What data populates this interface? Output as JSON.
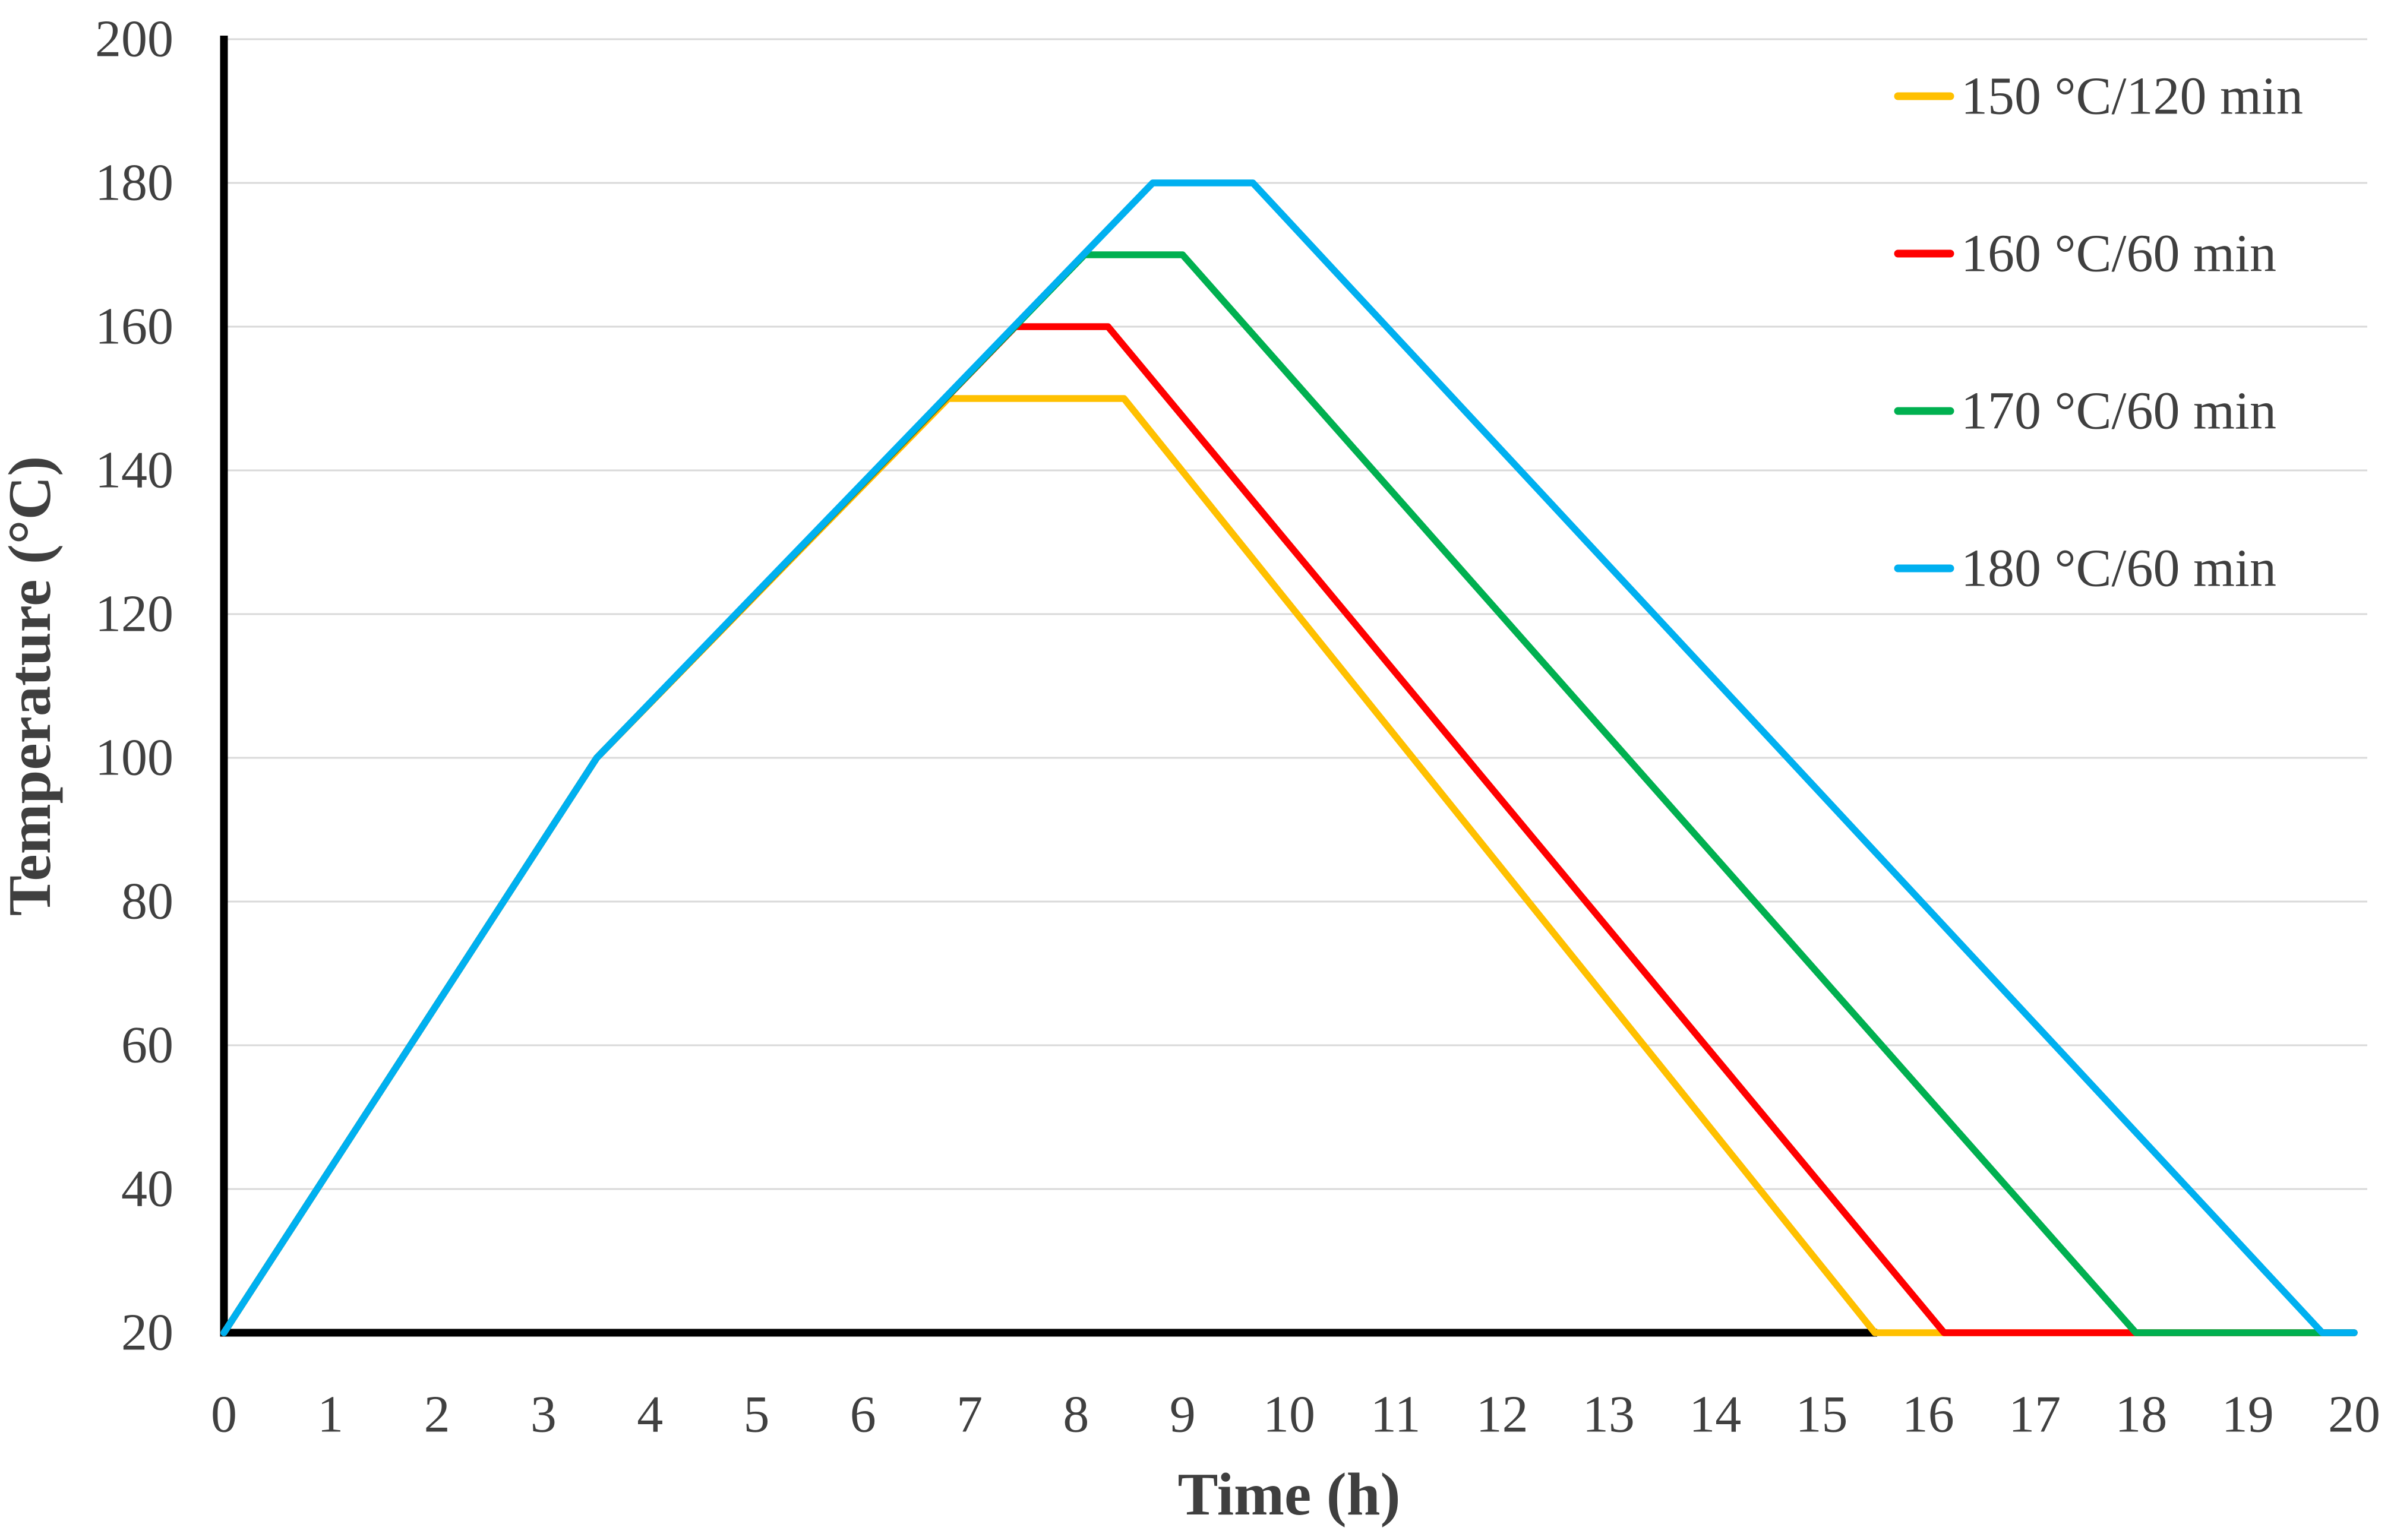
{
  "chart_data": {
    "type": "line",
    "title": "",
    "xlabel": "Time (h)",
    "ylabel": "Temperature (°C)",
    "xlim": [
      0,
      20
    ],
    "ylim": [
      20,
      200
    ],
    "x_ticks": [
      0,
      1,
      2,
      3,
      4,
      5,
      6,
      7,
      8,
      9,
      10,
      11,
      12,
      13,
      14,
      15,
      16,
      17,
      18,
      19,
      20
    ],
    "y_ticks": [
      20,
      40,
      60,
      80,
      100,
      120,
      140,
      160,
      180,
      200
    ],
    "grid": "horizontal-only",
    "legend_position": "top-right",
    "background_color": "#FFFFFF",
    "axis_color": "#000000",
    "gridline_color": "#D9D9D9",
    "tick_label_color": "#404040",
    "series": [
      {
        "name": "150 °C/120 min",
        "color": "#FFC000",
        "points": [
          [
            0,
            20
          ],
          [
            3.5,
            100
          ],
          [
            6.8,
            150
          ],
          [
            8.45,
            150
          ],
          [
            15.5,
            20
          ],
          [
            20,
            20
          ]
        ]
      },
      {
        "name": "160 °C/60 min",
        "color": "#FF0000",
        "points": [
          [
            0,
            20
          ],
          [
            3.5,
            100
          ],
          [
            7.43,
            160
          ],
          [
            8.3,
            160
          ],
          [
            16.15,
            20
          ],
          [
            20,
            20
          ]
        ]
      },
      {
        "name": "170 °C/60 min",
        "color": "#00B050",
        "points": [
          [
            0,
            20
          ],
          [
            3.5,
            100
          ],
          [
            8.08,
            170
          ],
          [
            9.0,
            170
          ],
          [
            17.95,
            20
          ],
          [
            20,
            20
          ]
        ]
      },
      {
        "name": "180 °C/60 min",
        "color": "#00B0F0",
        "points": [
          [
            0,
            20
          ],
          [
            3.5,
            100
          ],
          [
            8.72,
            180
          ],
          [
            9.66,
            180
          ],
          [
            19.7,
            20
          ],
          [
            20,
            20
          ]
        ]
      }
    ]
  }
}
